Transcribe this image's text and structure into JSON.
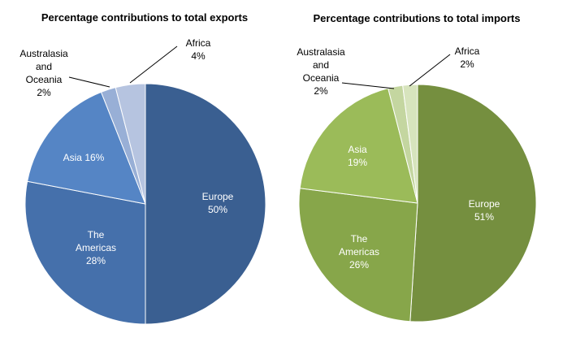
{
  "chart_data": [
    {
      "type": "pie",
      "title": "Percentage contributions to total exports",
      "unit": "%",
      "slices": [
        {
          "name": "Europe",
          "value": 50,
          "label_lines": [
            "Europe",
            "50%"
          ],
          "color": "#3A5F91",
          "label_inside": true
        },
        {
          "name": "The Americas",
          "value": 28,
          "label_lines": [
            "The",
            "Americas",
            "28%"
          ],
          "color": "#4570AB",
          "label_inside": true
        },
        {
          "name": "Asia",
          "value": 16,
          "label_lines": [
            "Asia 16%"
          ],
          "color": "#5585C5",
          "label_inside": true
        },
        {
          "name": "Australasia and Oceania",
          "value": 2,
          "label_lines": [
            "Australasia",
            "and",
            "Oceania",
            "2%"
          ],
          "color": "#98AFD6",
          "label_inside": false
        },
        {
          "name": "Africa",
          "value": 4,
          "label_lines": [
            "Africa",
            "4%"
          ],
          "color": "#B6C4E0",
          "label_inside": false
        }
      ]
    },
    {
      "type": "pie",
      "title": "Percentage contributions to total imports",
      "unit": "%",
      "slices": [
        {
          "name": "Europe",
          "value": 51,
          "label_lines": [
            "Europe",
            "51%"
          ],
          "color": "#758F3F",
          "label_inside": true
        },
        {
          "name": "The Americas",
          "value": 26,
          "label_lines": [
            "The",
            "Americas",
            "26%"
          ],
          "color": "#87A64A",
          "label_inside": true
        },
        {
          "name": "Asia",
          "value": 19,
          "label_lines": [
            "Asia",
            "19%"
          ],
          "color": "#9BBB59",
          "label_inside": true
        },
        {
          "name": "Australasia and Oceania",
          "value": 2,
          "label_lines": [
            "Australasia",
            "and",
            "Oceania",
            "2%"
          ],
          "color": "#C4D6A0",
          "label_inside": false
        },
        {
          "name": "Africa",
          "value": 2,
          "label_lines": [
            "Africa",
            "2%"
          ],
          "color": "#D7E4BD",
          "label_inside": false
        }
      ]
    }
  ]
}
